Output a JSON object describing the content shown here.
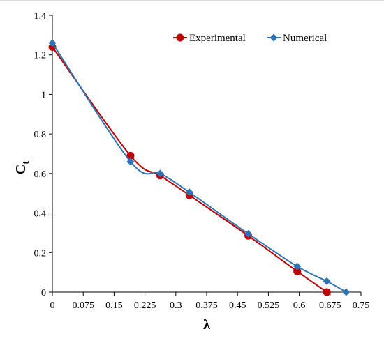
{
  "chart_data": {
    "type": "line",
    "title": "",
    "xlabel": "λ",
    "ylabel": "C",
    "ylabel_subscript": "t",
    "xlim": [
      0,
      0.75
    ],
    "ylim": [
      0,
      1.4
    ],
    "x_ticks": [
      0,
      0.075,
      0.15,
      0.225,
      0.3,
      0.375,
      0.45,
      0.525,
      0.6,
      0.675,
      0.75
    ],
    "x_tick_labels": [
      "0",
      "0.075",
      "0.15",
      "0.225",
      "0.3",
      "0.375",
      "0.45",
      "0.525",
      "0.6",
      "0.675",
      "0.75"
    ],
    "y_ticks": [
      0,
      0.2,
      0.4,
      0.6,
      0.8,
      1,
      1.2,
      1.4
    ],
    "y_tick_labels": [
      "0",
      "0.2",
      "0.4",
      "0.6",
      "0.8",
      "1",
      "1.2",
      "1.4"
    ],
    "grid": false,
    "smooth": true,
    "legend_position": "top-right",
    "series": [
      {
        "name": "Experimental",
        "color": "#c00000",
        "marker": "circle",
        "x": [
          0,
          0.19,
          0.262,
          0.333,
          0.476,
          0.595,
          0.667
        ],
        "y": [
          1.24,
          0.69,
          0.59,
          0.49,
          0.285,
          0.105,
          0.0
        ]
      },
      {
        "name": "Numerical",
        "color": "#2e75b6",
        "marker": "diamond",
        "x": [
          0,
          0.19,
          0.262,
          0.333,
          0.476,
          0.595,
          0.667,
          0.714
        ],
        "y": [
          1.26,
          0.66,
          0.6,
          0.505,
          0.295,
          0.13,
          0.055,
          0.0
        ]
      }
    ]
  }
}
